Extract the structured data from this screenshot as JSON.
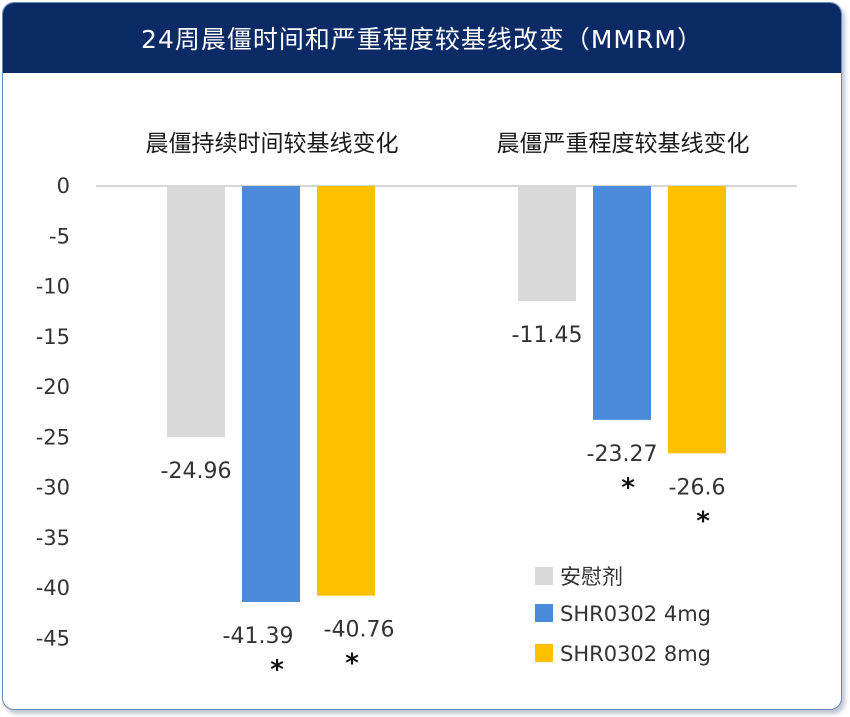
{
  "chart_data": {
    "type": "bar",
    "title": "24周晨僵时间和严重程度较基线改变（MMRM）",
    "panels": [
      {
        "title": "晨僵持续时间较基线变化",
        "values": [
          -24.96,
          -41.39,
          -40.76
        ],
        "labels": [
          "-24.96",
          "-41.39",
          "-40.76"
        ],
        "significance": [
          "",
          "*",
          "*"
        ]
      },
      {
        "title": "晨僵严重程度较基线变化",
        "values": [
          -11.45,
          -23.27,
          -26.6
        ],
        "labels": [
          "-11.45",
          "-23.27",
          "-26.6"
        ],
        "significance": [
          "",
          "*",
          "*"
        ]
      }
    ],
    "series": [
      {
        "name": "安慰剂",
        "color": "#d9d9d9"
      },
      {
        "name": "SHR0302 4mg",
        "color": "#4a8ad8"
      },
      {
        "name": "SHR0302 8mg",
        "color": "#ffc000"
      }
    ],
    "yticks": [
      "0",
      "-5",
      "-10",
      "-15",
      "-20",
      "-25",
      "-30",
      "-35",
      "-40",
      "-45"
    ],
    "ylim": [
      -45,
      0
    ],
    "legend_position": "bottom-right",
    "grid": false
  }
}
